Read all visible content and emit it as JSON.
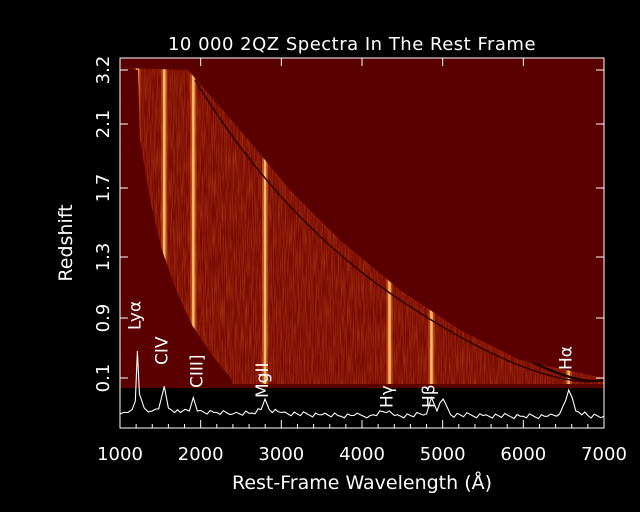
{
  "chart_data": {
    "type": "heatmap",
    "title": "10 000 2QZ Spectra In The Rest Frame",
    "xlabel": "Rest-Frame Wavelength (Å)",
    "ylabel": "Redshift",
    "xlim": [
      1000,
      7000
    ],
    "x_ticks": [
      1000,
      2000,
      3000,
      4000,
      5000,
      6000,
      7000
    ],
    "y_ticks": [
      "0.1",
      "0.9",
      "1.3",
      "1.7",
      "2.1",
      "3.2"
    ],
    "colors": {
      "background": "#000000",
      "plot_fill": "#5a0000",
      "emission": "#ffd27a",
      "axis": "#ffffff"
    },
    "emission_lines": [
      {
        "name": "Lyα",
        "wavelength": 1216
      },
      {
        "name": "CIV",
        "wavelength": 1549
      },
      {
        "name": "CIII]",
        "wavelength": 1909
      },
      {
        "name": "MgII",
        "wavelength": 2798
      },
      {
        "name": "Hγ",
        "wavelength": 4341
      },
      {
        "name": "Hβ",
        "wavelength": 4861
      },
      {
        "name": "Hα",
        "wavelength": 6563
      }
    ],
    "composite_spectrum": {
      "x": [
        1000,
        1100,
        1150,
        1190,
        1216,
        1240,
        1300,
        1400,
        1480,
        1549,
        1600,
        1750,
        1860,
        1909,
        1960,
        2200,
        2400,
        2600,
        2750,
        2798,
        2850,
        3000,
        3200,
        3500,
        3700,
        3900,
        4100,
        4341,
        4400,
        4600,
        4800,
        4861,
        4930,
        5007,
        5100,
        5500,
        6000,
        6300,
        6450,
        6563,
        6650,
        6800,
        7000
      ],
      "y": [
        0.08,
        0.1,
        0.14,
        0.25,
        0.92,
        0.35,
        0.16,
        0.12,
        0.15,
        0.45,
        0.16,
        0.1,
        0.12,
        0.3,
        0.12,
        0.1,
        0.08,
        0.09,
        0.14,
        0.28,
        0.14,
        0.1,
        0.08,
        0.07,
        0.06,
        0.06,
        0.06,
        0.12,
        0.06,
        0.06,
        0.08,
        0.3,
        0.12,
        0.28,
        0.07,
        0.06,
        0.05,
        0.05,
        0.08,
        0.4,
        0.12,
        0.06,
        0.05
      ]
    }
  }
}
